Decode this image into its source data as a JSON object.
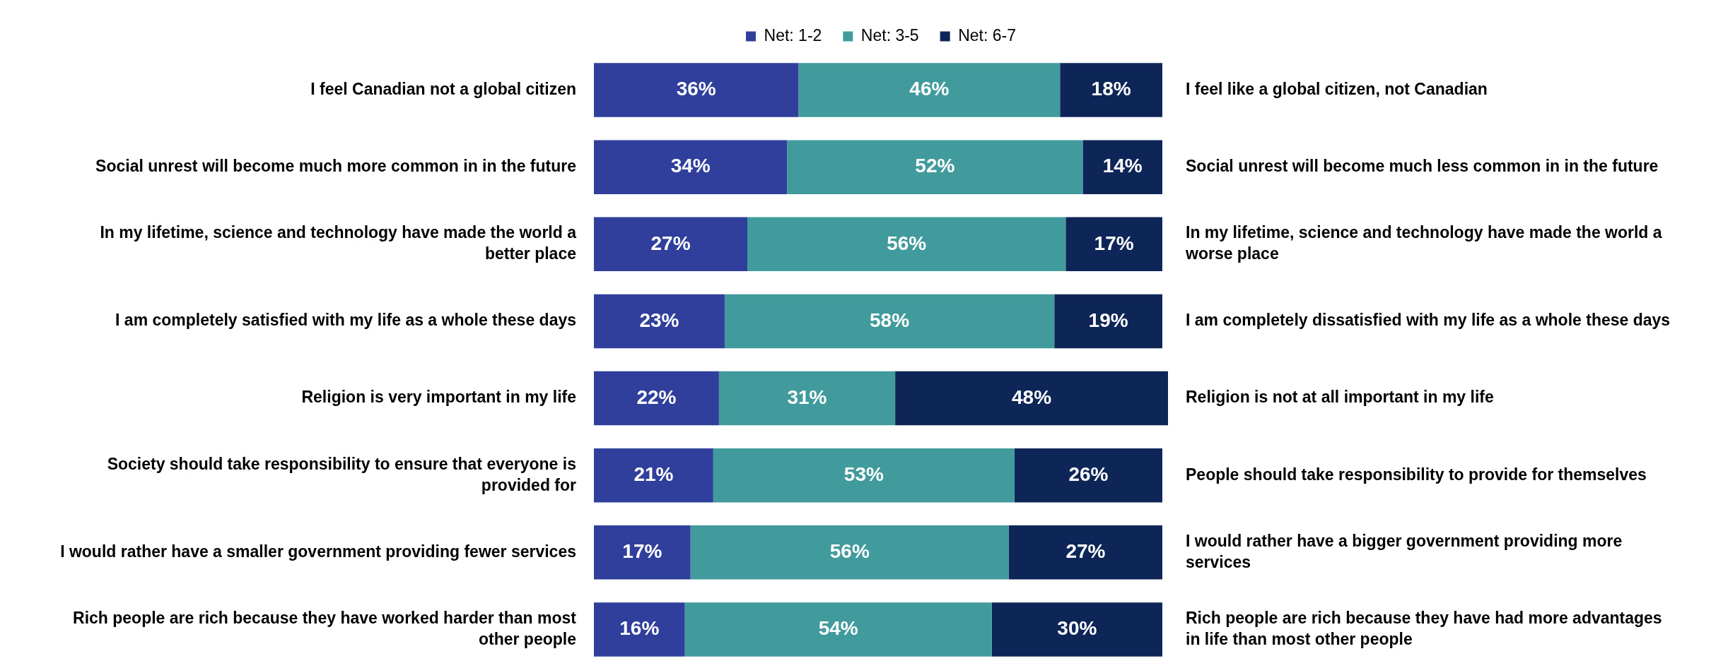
{
  "chart_data": {
    "type": "bar",
    "orientation": "horizontal",
    "stacked": true,
    "legend": "top",
    "tick_labels": false,
    "xlim": [
      0,
      101
    ],
    "categories": [
      "I feel Canadian not a global citizen",
      "Social unrest will become much more common in in the future",
      "In my lifetime, science and technology have made the world a better place",
      "I am completely satisfied with my life as a whole these days",
      "Religion is very important in my life",
      "Society should take responsibility to ensure that everyone is provided for",
      "I would rather have a smaller government providing fewer services",
      "Rich people are rich because they have worked harder than most other people"
    ],
    "y2_categories": [
      "I feel like a global citizen, not Canadian",
      "Social unrest will become much less common in in the future",
      "In my lifetime, science and technology have made the world a worse place",
      "I am completely dissatisfied with my life as a whole these days",
      "Religion is not at all important in my life",
      "People should take responsibility to provide for themselves",
      "I would rather have a bigger government providing more services",
      "Rich people are rich because they have had more advantages in life than most other people"
    ],
    "series": [
      {
        "name": "Net: 1-2",
        "color": "#2f3f9b",
        "values": [
          36,
          34,
          27,
          23,
          22,
          21,
          17,
          16
        ],
        "value_labels": [
          "36%",
          "34%",
          "27%",
          "23%",
          "22%",
          "21%",
          "17%",
          "16%"
        ]
      },
      {
        "name": "Net: 3-5",
        "color": "#419a9c",
        "values": [
          46,
          52,
          56,
          58,
          31,
          53,
          56,
          54
        ],
        "value_labels": [
          "46%",
          "52%",
          "56%",
          "58%",
          "31%",
          "53%",
          "56%",
          "54%"
        ]
      },
      {
        "name": "Net: 6-7",
        "color": "#0e2657",
        "values": [
          18,
          14,
          17,
          19,
          48,
          26,
          27,
          30
        ],
        "value_labels": [
          "18%",
          "14%",
          "17%",
          "19%",
          "48%",
          "26%",
          "27%",
          "30%"
        ]
      }
    ]
  }
}
